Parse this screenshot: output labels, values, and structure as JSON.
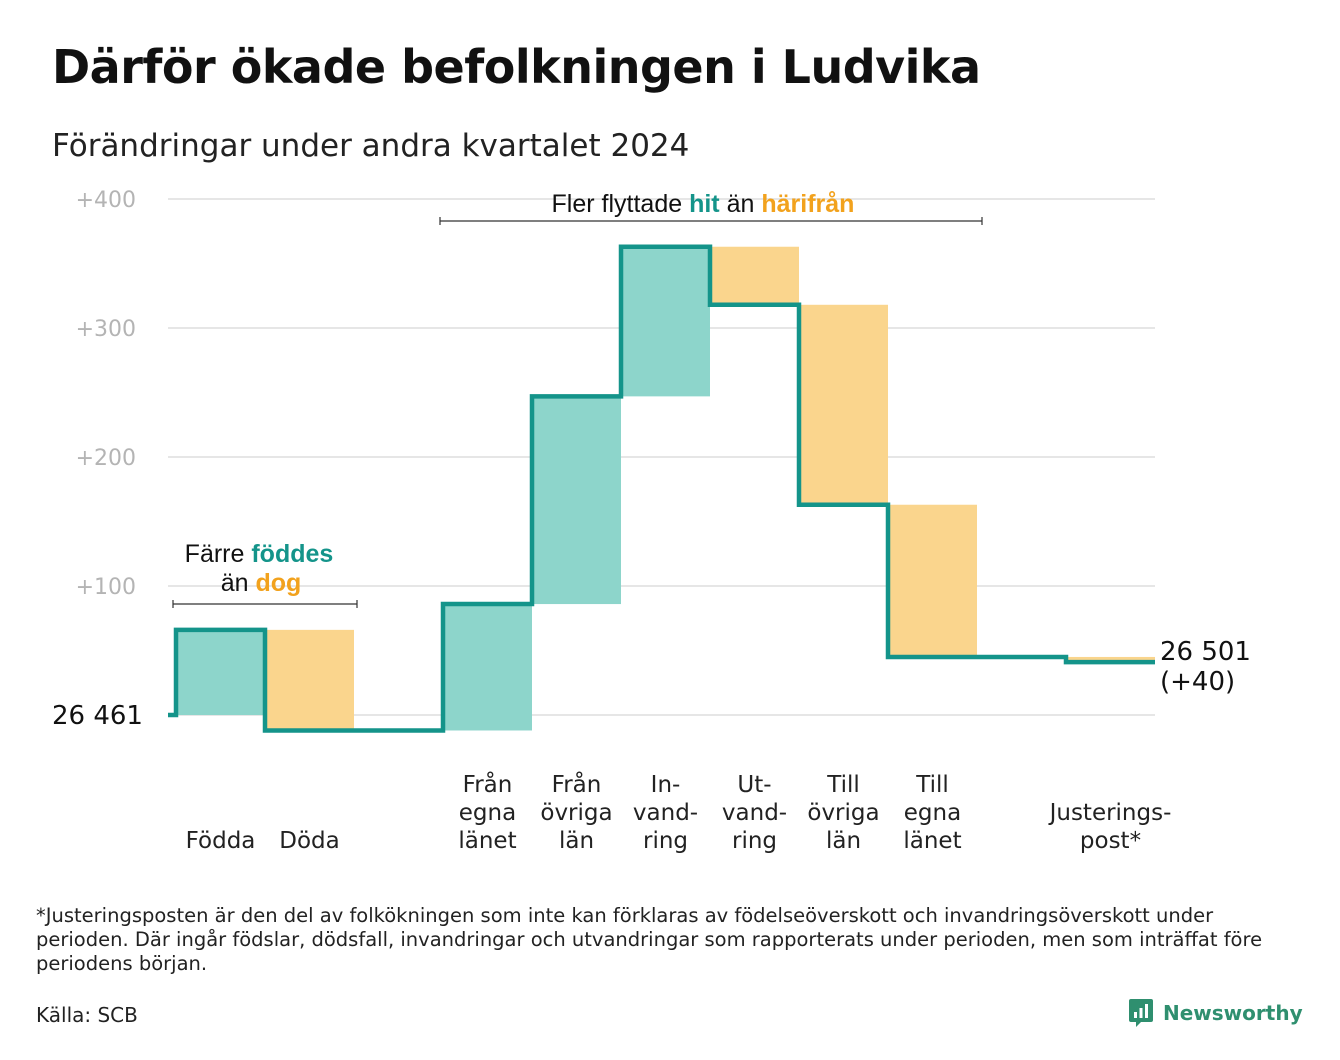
{
  "title": "Därför ökade befolkningen i Ludvika",
  "subtitle": "Förändringar under andra kvartalet 2024",
  "annotations": {
    "births": {
      "line1_prefix": "Färre",
      "line1_highlight": "föddes",
      "line2_prefix": "än",
      "line2_highlight": "dog"
    },
    "migration": {
      "prefix": "Fler flyttade",
      "highlight1": "hit",
      "middle": "än",
      "highlight2": "härifrån"
    }
  },
  "start_label": "26  461",
  "end_label": {
    "line1": "26 501",
    "line2": "(+40)"
  },
  "footnote": "*Justeringsposten är den del av folkökningen som inte kan förklaras av födelseöverskott och invandringsöverskott under perioden. Där ingår födslar, dödsfall, invandringar och utvandringar som rapporterats under perioden, men som inträffat före periodens början.",
  "source": "Källa: SCB",
  "brand": "Newsworthy",
  "colors": {
    "increase": "#8dd5cb",
    "decrease": "#fad58d",
    "line": "#14948a",
    "grid": "#e6e6e6",
    "accent_green": "#14948a",
    "accent_orange": "#f2a21d"
  },
  "chart_data": {
    "type": "waterfall",
    "baseline": 26461,
    "ylim": [
      0,
      400
    ],
    "yticks": [
      "+100",
      "+200",
      "+300",
      "+400"
    ],
    "ytick_values": [
      100,
      200,
      300,
      400
    ],
    "grid": true,
    "categories": [
      [
        "Födda"
      ],
      [
        "Döda"
      ],
      [
        ""
      ],
      [
        "Från",
        "egna",
        "länet"
      ],
      [
        "Från",
        "övriga",
        "län"
      ],
      [
        "In-",
        "vand-",
        "ring"
      ],
      [
        "Ut-",
        "vand-",
        "ring"
      ],
      [
        "Till",
        "övriga",
        "län"
      ],
      [
        "Till",
        "egna",
        "länet"
      ],
      [
        ""
      ],
      [
        "Justerings-",
        "post*"
      ]
    ],
    "values": [
      66,
      -78,
      0,
      98,
      161,
      116,
      -45,
      -155,
      -118,
      0,
      -4
    ],
    "end_total": 40
  }
}
